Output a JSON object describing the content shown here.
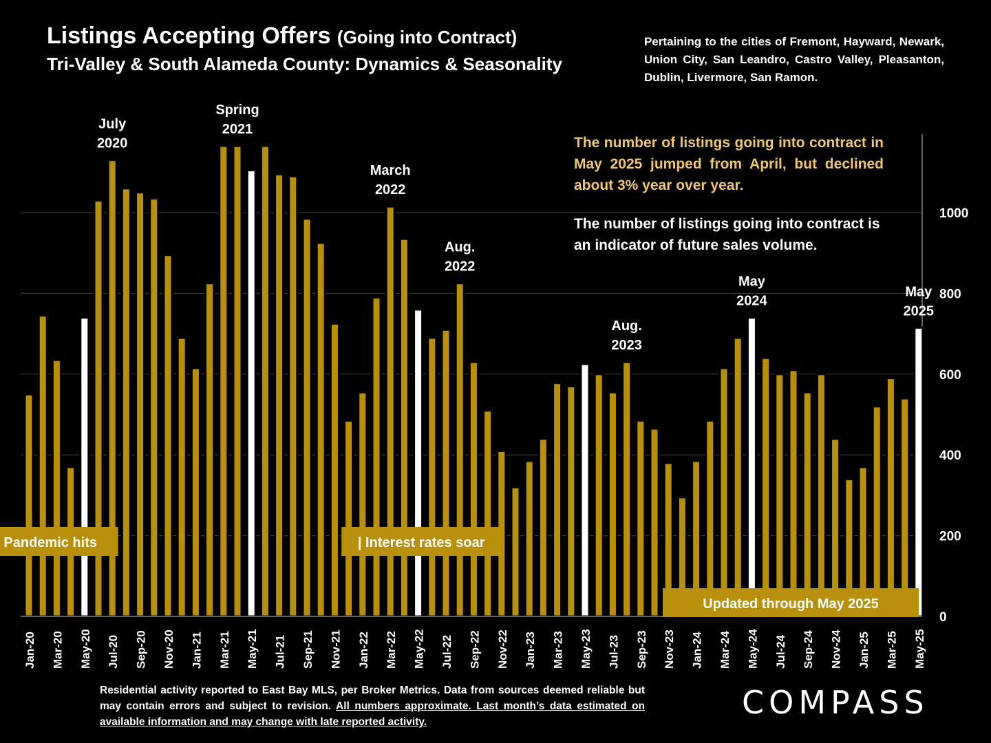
{
  "header": {
    "title": "Listings Accepting Offers",
    "title_paren": "(Going into Contract)",
    "subtitle": "Tri-Valley & South Alameda County: Dynamics & Seasonality",
    "pertaining": "Pertaining to the cities of Fremont, Hayward, Newark, Union City, San Leandro, Castro Valley, Pleasanton, Dublin, Livermore, San Ramon."
  },
  "notes": {
    "highlight": "The number of listings going into contract in May 2025 jumped from April, but declined about 3% year over year.",
    "secondary": "The number of listings going into contract is an indicator of future sales volume."
  },
  "footer": {
    "plain": "Residential activity reported to East Bay MLS, per Broker Metrics. Data from sources deemed reliable but may contain errors and subject to revision.",
    "underlined": "All numbers approximate. Last month’s data estimated on available information and may change with late reported activity."
  },
  "logo": "COMPASS",
  "colors": {
    "bar": "#b8900b",
    "highlight_bar": "#ffffff",
    "background": "#000000",
    "note_highlight": "#f2c66d",
    "label_box": "#b8900b"
  },
  "chart_data": {
    "type": "bar",
    "categories": [
      "Jan-20",
      "Feb-20",
      "Mar-20",
      "Apr-20",
      "May-20",
      "Jun-20",
      "Jul-20",
      "Aug-20",
      "Sep-20",
      "Oct-20",
      "Nov-20",
      "Dec-20",
      "Jan-21",
      "Feb-21",
      "Mar-21",
      "Apr-21",
      "May-21",
      "Jun-21",
      "Jul-21",
      "Aug-21",
      "Sep-21",
      "Oct-21",
      "Nov-21",
      "Dec-21",
      "Jan-22",
      "Feb-22",
      "Mar-22",
      "Apr-22",
      "May-22",
      "Jun-22",
      "Jul-22",
      "Aug-22",
      "Sep-22",
      "Oct-22",
      "Nov-22",
      "Dec-22",
      "Jan-23",
      "Feb-23",
      "Mar-23",
      "Apr-23",
      "May-23",
      "Jun-23",
      "Jul-23",
      "Aug-23",
      "Sep-23",
      "Oct-23",
      "Nov-23",
      "Dec-23",
      "Jan-24",
      "Feb-24",
      "Mar-24",
      "Apr-24",
      "May-24",
      "Jun-24",
      "Jul-24",
      "Aug-24",
      "Sep-24",
      "Oct-24",
      "Nov-24",
      "Dec-24",
      "Jan-25",
      "Feb-25",
      "Mar-25",
      "Apr-25",
      "May-25"
    ],
    "x_tick_labels": [
      "Jan-20",
      "Mar-20",
      "May-20",
      "Jul-20",
      "Sep-20",
      "Nov-20",
      "Jan-21",
      "Mar-21",
      "May-21",
      "Jul-21",
      "Sep-21",
      "Nov-21",
      "Jan-22",
      "Mar-22",
      "May-22",
      "Jul-22",
      "Sep-22",
      "Nov-22",
      "Jan-23",
      "Mar-23",
      "May-23",
      "Jul-23",
      "Sep-23",
      "Nov-23",
      "Jan-24",
      "Mar-24",
      "May-24",
      "Jul-24",
      "Sep-24",
      "Nov-24",
      "Jan-25",
      "Mar-25",
      "May-25"
    ],
    "values": [
      550,
      745,
      635,
      370,
      740,
      1030,
      1130,
      1060,
      1050,
      1035,
      895,
      690,
      615,
      825,
      1165,
      1165,
      1105,
      1165,
      1095,
      1090,
      985,
      925,
      725,
      485,
      555,
      790,
      1015,
      935,
      760,
      690,
      710,
      825,
      630,
      510,
      410,
      320,
      385,
      440,
      578,
      570,
      625,
      600,
      555,
      630,
      485,
      465,
      380,
      295,
      385,
      485,
      615,
      690,
      740,
      640,
      600,
      610,
      555,
      600,
      440,
      340,
      370,
      520,
      590,
      540,
      715
    ],
    "highlighted": [
      "May-20",
      "May-21",
      "May-22",
      "May-23",
      "May-24",
      "May-25"
    ],
    "ylim": [
      0,
      1200
    ],
    "y_ticks": [
      0,
      200,
      400,
      600,
      800,
      1000
    ],
    "y_axis_side": "right",
    "grid": true,
    "annotations": [
      {
        "label": "July 2020",
        "lines": [
          "July",
          "2020"
        ],
        "category": "Jul-20"
      },
      {
        "label": "Spring 2021",
        "lines": [
          "Spring",
          "2021"
        ],
        "category": "Apr-21"
      },
      {
        "label": "March 2022",
        "lines": [
          "March",
          "2022"
        ],
        "category": "Mar-22"
      },
      {
        "label": "Aug. 2022",
        "lines": [
          "Aug.",
          "2022"
        ],
        "category": "Aug-22"
      },
      {
        "label": "Aug. 2023",
        "lines": [
          "Aug.",
          "2023"
        ],
        "category": "Aug-23"
      },
      {
        "label": "May 2024",
        "lines": [
          "May",
          "2024"
        ],
        "category": "May-24"
      },
      {
        "label": "May 2025",
        "lines": [
          "May",
          "2025"
        ],
        "category": "May-25"
      }
    ],
    "event_labels": [
      {
        "text": "| Pandemic hits",
        "category": "Apr-20"
      },
      {
        "text": "| Interest rates soar",
        "category": "Mar-22"
      },
      {
        "text": "Updated through May 2025",
        "category": "Oct-24"
      }
    ]
  }
}
